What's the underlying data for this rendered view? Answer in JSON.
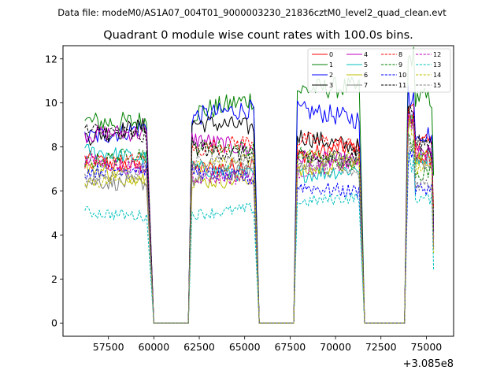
{
  "chart_data": {
    "type": "line",
    "suptitle": "Data file: modeM0/AS1A07_004T01_9000003230_21836cztM0_level2_quad_clean.evt",
    "title": "Quadrant 0 module wise count rates with 100.0s bins.",
    "xlabel": "",
    "ylabel": "",
    "x_offset_label": "+3.085e8",
    "xlim": [
      55000,
      76500
    ],
    "ylim": [
      -0.6,
      12.6
    ],
    "x_ticks": [
      57500,
      60000,
      62500,
      65000,
      67500,
      70000,
      72500,
      75000
    ],
    "x_tick_labels": [
      "57500",
      "60000",
      "62500",
      "65000",
      "67500",
      "70000",
      "72500",
      "75000"
    ],
    "y_ticks": [
      0,
      2,
      4,
      6,
      8,
      10,
      12
    ],
    "y_tick_labels": [
      "0",
      "2",
      "4",
      "6",
      "8",
      "10",
      "12"
    ],
    "legend_position": "upper right",
    "x_start": 56200,
    "x_step": 100,
    "segments": [
      {
        "start": 56200,
        "end": 59600
      },
      {
        "start": 62100,
        "end": 65500
      },
      {
        "start": 67900,
        "end": 71300
      },
      {
        "start": 74000,
        "end": 75400
      }
    ],
    "gaps": [
      {
        "start": 60000,
        "end": 61900
      },
      {
        "start": 65800,
        "end": 67700
      },
      {
        "start": 71600,
        "end": 73800
      }
    ],
    "series": [
      {
        "name": "0",
        "color": "#ff0000",
        "style": "solid",
        "level": 7.6
      },
      {
        "name": "1",
        "color": "#008000",
        "style": "solid",
        "level": 9.9
      },
      {
        "name": "2",
        "color": "#0000ff",
        "style": "solid",
        "level": 9.0
      },
      {
        "name": "3",
        "color": "#000000",
        "style": "solid",
        "level": 8.4
      },
      {
        "name": "4",
        "color": "#bf00bf",
        "style": "solid",
        "level": 8.0
      },
      {
        "name": "5",
        "color": "#00bfbf",
        "style": "solid",
        "level": 7.3
      },
      {
        "name": "6",
        "color": "#bfbf00",
        "style": "solid",
        "level": 7.0
      },
      {
        "name": "7",
        "color": "#808080",
        "style": "solid",
        "level": 6.9
      },
      {
        "name": "8",
        "color": "#ff0000",
        "style": "dashed",
        "level": 7.7
      },
      {
        "name": "9",
        "color": "#008000",
        "style": "dashed",
        "level": 7.4
      },
      {
        "name": "10",
        "color": "#0000ff",
        "style": "dashed",
        "level": 6.5
      },
      {
        "name": "11",
        "color": "#000000",
        "style": "dashed",
        "level": 8.1
      },
      {
        "name": "12",
        "color": "#bf00bf",
        "style": "dashed",
        "level": 7.2
      },
      {
        "name": "13",
        "color": "#00bfbf",
        "style": "dashed",
        "level": 5.3
      },
      {
        "name": "14",
        "color": "#bfbf00",
        "style": "dashed",
        "level": 7.0
      },
      {
        "name": "15",
        "color": "#808080",
        "style": "dashed",
        "level": 6.8
      }
    ]
  }
}
